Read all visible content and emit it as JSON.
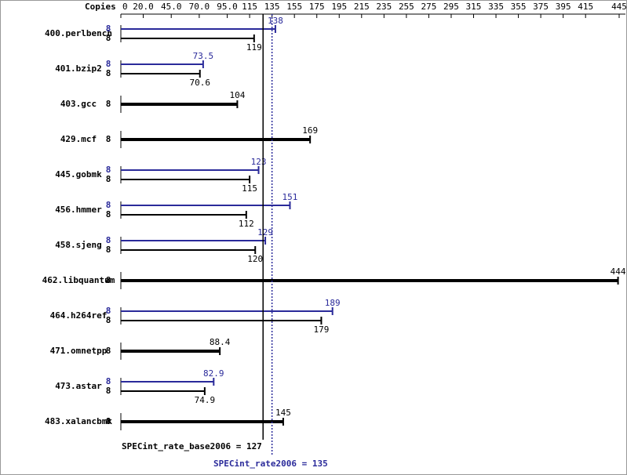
{
  "chart_data": {
    "type": "bar",
    "orientation": "horizontal",
    "copies_label": "Copies",
    "categories": [
      "400.perlbench",
      "401.bzip2",
      "403.gcc",
      "429.mcf",
      "445.gobmk",
      "456.hmmer",
      "458.sjeng",
      "462.libquantum",
      "464.h264ref",
      "471.omnetpp",
      "473.astar",
      "483.xalancbmk"
    ],
    "series": [
      {
        "name": "base",
        "color": "#000000",
        "values": [
          119,
          70.6,
          104,
          169,
          115,
          112,
          120,
          444,
          179,
          88.4,
          74.9,
          145
        ],
        "copies": [
          8,
          8,
          8,
          8,
          8,
          8,
          8,
          8,
          8,
          8,
          8,
          8
        ]
      },
      {
        "name": "peak",
        "color": "#2a2a9a",
        "values": [
          138,
          73.5,
          null,
          null,
          123,
          151,
          129,
          null,
          189,
          null,
          82.9,
          null
        ],
        "copies": [
          8,
          8,
          null,
          null,
          8,
          8,
          8,
          null,
          8,
          null,
          8,
          null
        ]
      }
    ],
    "xlim": [
      0,
      445
    ],
    "xticks": [
      0,
      {
        "value": 20,
        "label": "20.0"
      },
      {
        "value": 45,
        "label": "45.0"
      },
      {
        "value": 70,
        "label": "70.0"
      },
      {
        "value": 95,
        "label": "95.0"
      },
      115,
      135,
      155,
      175,
      195,
      215,
      235,
      255,
      275,
      295,
      315,
      335,
      355,
      375,
      395,
      415,
      445
    ],
    "reference_lines": [
      {
        "label": "SPECint_rate_base2006 = 127",
        "value": 127,
        "color": "#000000",
        "style": "solid"
      },
      {
        "label": "SPECint_rate2006 = 135",
        "value": 135,
        "color": "#2a2a9a",
        "style": "dotted"
      }
    ]
  }
}
